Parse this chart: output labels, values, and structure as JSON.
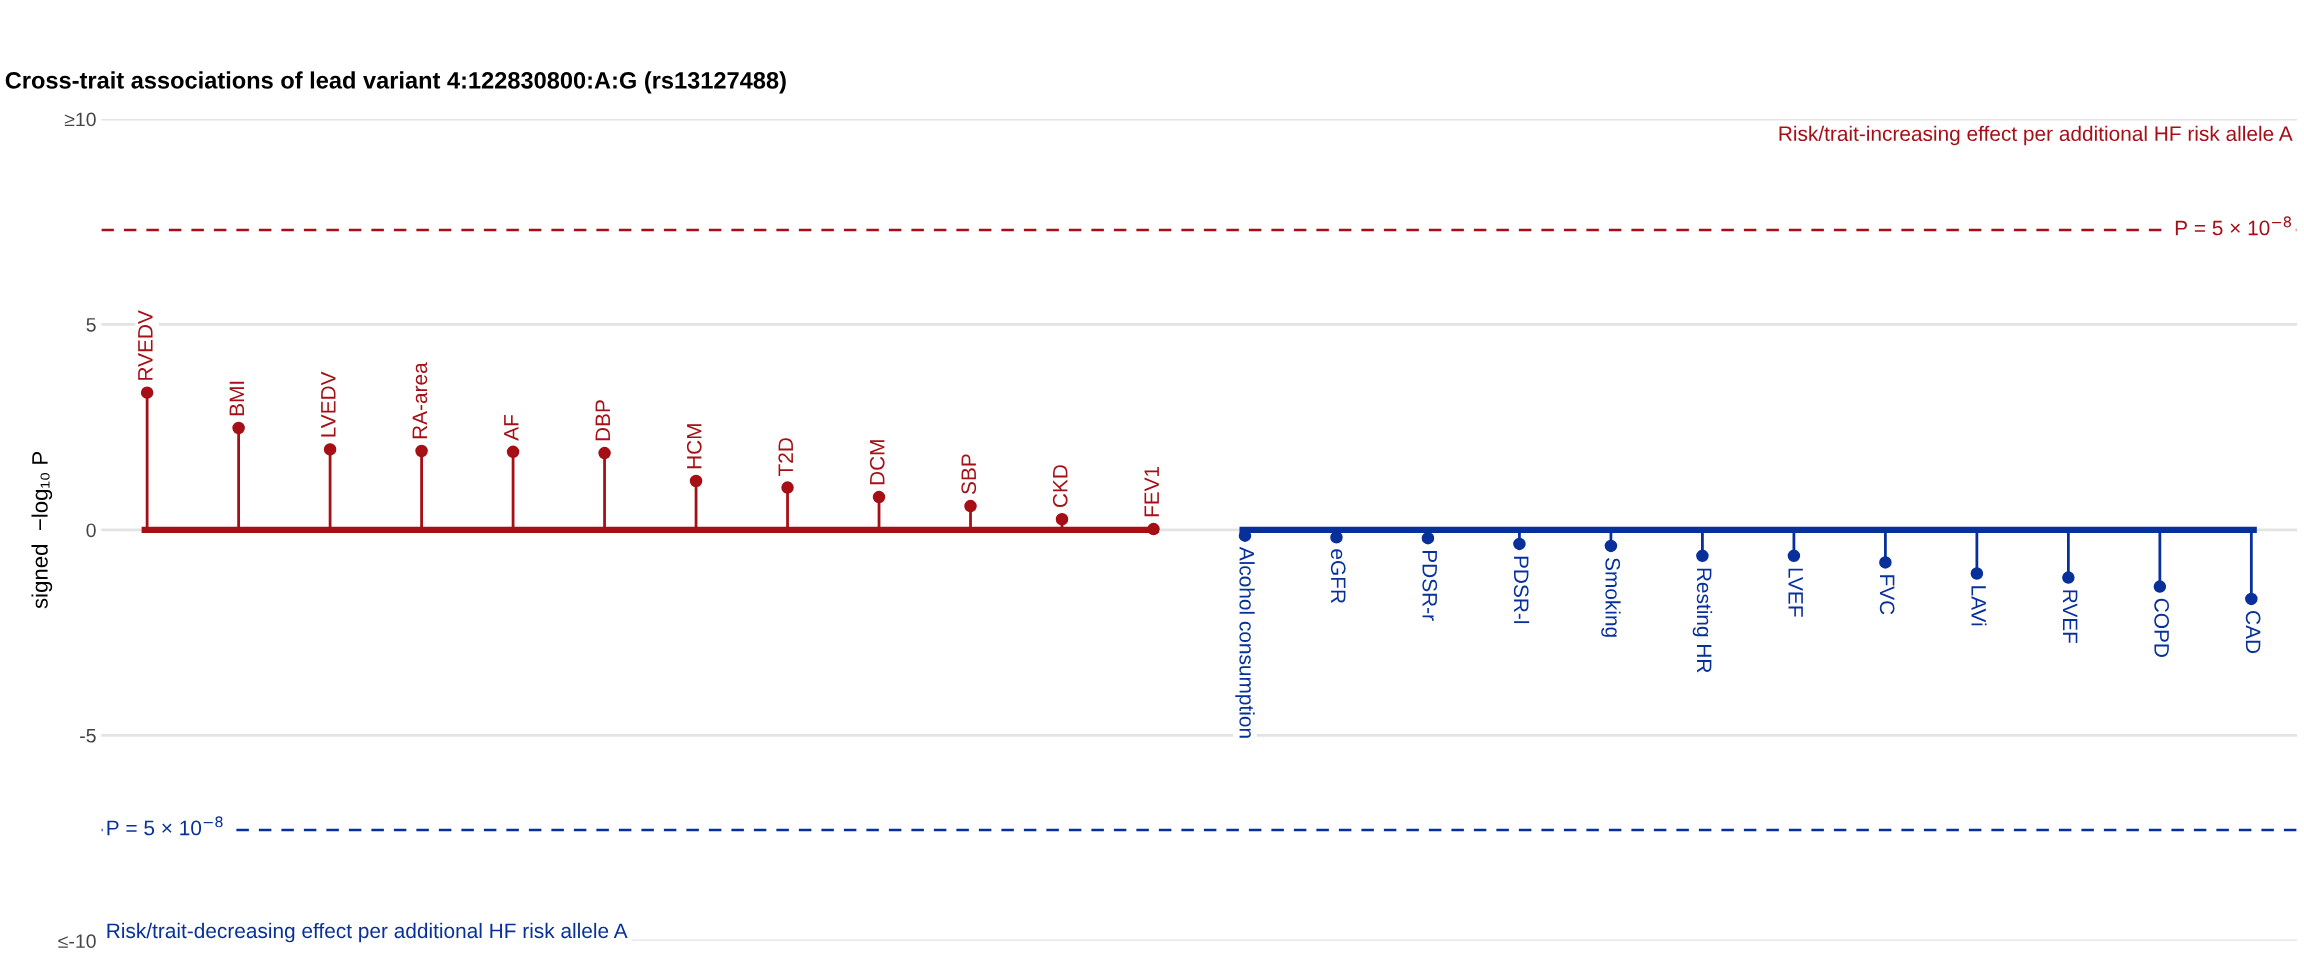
{
  "chart_data": {
    "type": "lollipop",
    "title": "Cross-trait associations of lead variant 4:122830800:A:G (rs13127488)",
    "ylabel": "signed  −log₁₀ P",
    "categories": [
      "RVEDV",
      "BMI",
      "LVEDV",
      "RA-area",
      "AF",
      "DBP",
      "HCM",
      "T2D",
      "DCM",
      "SBP",
      "CKD",
      "FEV1",
      "Alcohol consumption",
      "eGFR",
      "PDSR-r",
      "PDSR-l",
      "Smoking",
      "Resting HR",
      "LVEF",
      "FVC",
      "LAVi",
      "RVEF",
      "COPD",
      "CAD"
    ],
    "series": [
      {
        "color": "#a50f15",
        "values": [
          3.34,
          2.48,
          1.96,
          1.92,
          1.9,
          1.87,
          1.19,
          1.03,
          0.8,
          0.58,
          0.26,
          0.02,
          null,
          null,
          null,
          null,
          null,
          null,
          null,
          null,
          null,
          null,
          null,
          null
        ]
      },
      {
        "color": "#08309a",
        "values": [
          null,
          null,
          null,
          null,
          null,
          null,
          null,
          null,
          null,
          null,
          null,
          null,
          -0.14,
          -0.18,
          -0.2,
          -0.34,
          -0.39,
          -0.63,
          -0.63,
          -0.79,
          -1.06,
          -1.16,
          -1.38,
          -1.68
        ]
      }
    ],
    "ylim": [
      -10,
      10
    ],
    "yticks": [
      {
        "value": 10,
        "label": "≥10"
      },
      5,
      0,
      -5,
      {
        "value": -10,
        "label": "≤-10"
      }
    ],
    "ref_lines": [
      {
        "axis": "y",
        "value": 7.30103,
        "color": "#a50f15",
        "line_style": "dashed"
      },
      {
        "axis": "y",
        "value": -7.30103,
        "color": "#08309a",
        "line_style": "dashed"
      },
      {
        "axis": "y",
        "value": 0,
        "color": "#a50f15",
        "line_style": "solid"
      },
      {
        "axis": "y",
        "value": 0,
        "color": "#08309a",
        "line_style": "solid"
      }
    ],
    "annotations": [
      "Risk/trait-increasing effect per additional HF risk allele A",
      "Risk/trait-decreasing effect per additional HF risk allele A",
      {
        "text": "P = 5 × 10$^{−8}$",
        "y": 7.30103
      },
      {
        "text": "P = 5 × 10$^{−8}$",
        "y": -7.30103
      }
    ],
    "grid": "y",
    "marker": "circle",
    "line_style": "solid",
    "tick_labels": "y"
  }
}
